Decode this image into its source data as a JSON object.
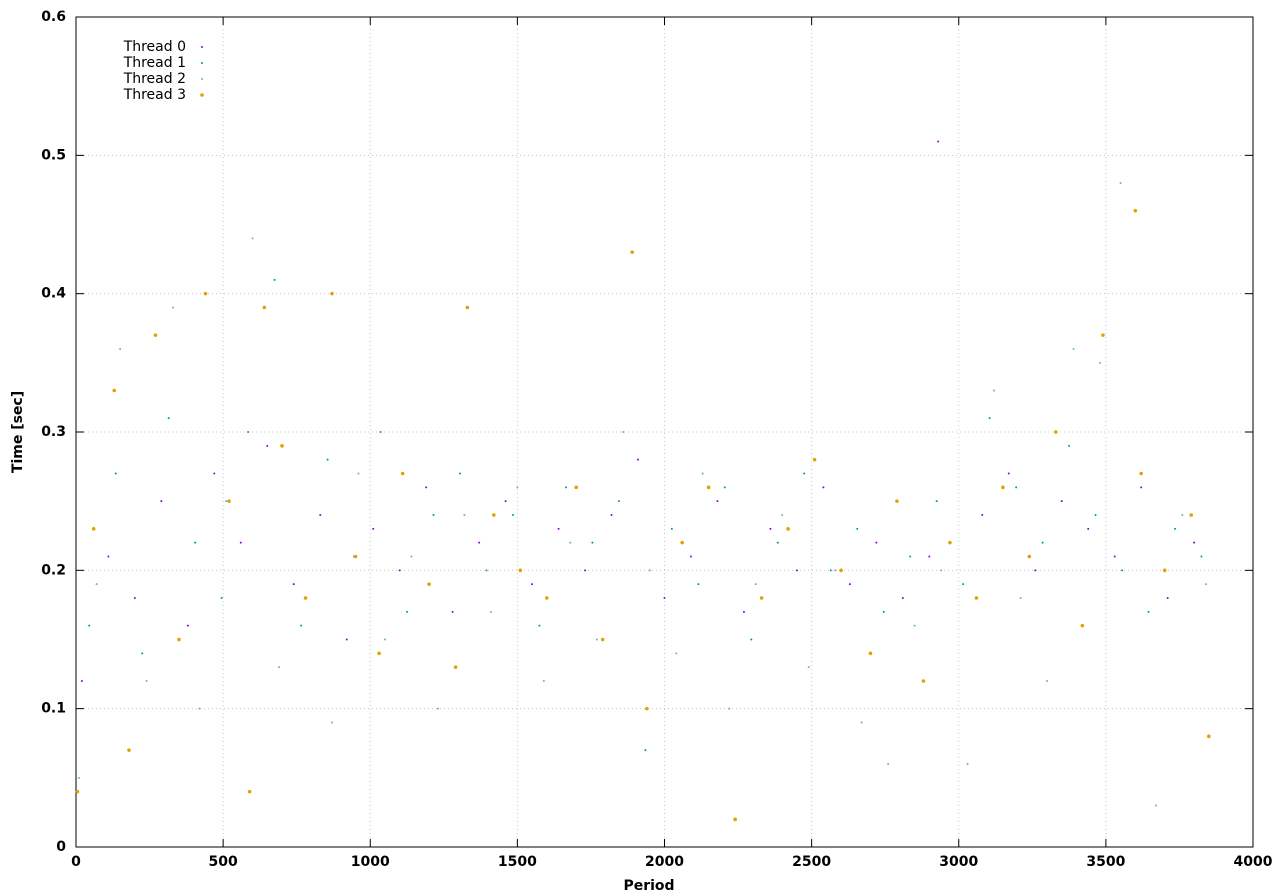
{
  "chart_data": {
    "type": "scatter",
    "xlabel": "Period",
    "ylabel": "Time [sec]",
    "xlim": [
      0,
      4000
    ],
    "ylim": [
      0,
      0.6
    ],
    "xticks": [
      0,
      500,
      1000,
      1500,
      2000,
      2500,
      3000,
      3500,
      4000
    ],
    "yticks": [
      0,
      0.1,
      0.2,
      0.3,
      0.4,
      0.5,
      0.6
    ],
    "grid": true,
    "legend": "upper-left",
    "series": [
      {
        "name": "Thread 0",
        "color": "#9400d3",
        "x": [
          20,
          110,
          200,
          290,
          380,
          470,
          560,
          650,
          740,
          830,
          920,
          1010,
          1100,
          1190,
          1280,
          1370,
          1460,
          1550,
          1640,
          1730,
          1820,
          1910,
          2000,
          2090,
          2180,
          2270,
          2360,
          2450,
          2540,
          2630,
          2720,
          2810,
          2900,
          2930,
          3080,
          3170,
          3260,
          3350,
          3440,
          3530,
          3620,
          3710,
          3800
        ],
        "values": [
          0.12,
          0.21,
          0.18,
          0.25,
          0.16,
          0.27,
          0.22,
          0.29,
          0.19,
          0.24,
          0.15,
          0.23,
          0.2,
          0.26,
          0.17,
          0.22,
          0.25,
          0.19,
          0.23,
          0.2,
          0.24,
          0.28,
          0.18,
          0.21,
          0.25,
          0.17,
          0.23,
          0.2,
          0.26,
          0.19,
          0.22,
          0.18,
          0.21,
          0.51,
          0.24,
          0.27,
          0.2,
          0.25,
          0.23,
          0.21,
          0.26,
          0.18,
          0.22
        ]
      },
      {
        "name": "Thread 1",
        "color": "#009e73",
        "x": [
          45,
          135,
          225,
          315,
          405,
          495,
          585,
          675,
          765,
          855,
          945,
          1035,
          1125,
          1215,
          1305,
          1395,
          1485,
          1575,
          1665,
          1755,
          1845,
          1935,
          2025,
          2115,
          2205,
          2295,
          2385,
          2475,
          2565,
          2655,
          2745,
          2835,
          2925,
          3015,
          3105,
          3195,
          3285,
          3375,
          3465,
          3555,
          3645,
          3735,
          3825
        ],
        "values": [
          0.16,
          0.27,
          0.14,
          0.31,
          0.22,
          0.18,
          0.3,
          0.41,
          0.16,
          0.28,
          0.21,
          0.3,
          0.17,
          0.24,
          0.27,
          0.2,
          0.24,
          0.16,
          0.26,
          0.22,
          0.25,
          0.07,
          0.23,
          0.19,
          0.26,
          0.15,
          0.22,
          0.27,
          0.2,
          0.23,
          0.17,
          0.21,
          0.25,
          0.19,
          0.31,
          0.26,
          0.22,
          0.29,
          0.24,
          0.2,
          0.17,
          0.23,
          0.21
        ]
      },
      {
        "name": "Thread 2",
        "color": "#56b4e9",
        "x": [
          10,
          70,
          150,
          240,
          330,
          420,
          510,
          600,
          690,
          780,
          870,
          960,
          1050,
          1140,
          1230,
          1320,
          1410,
          1500,
          1590,
          1680,
          1770,
          1860,
          1950,
          2040,
          2130,
          2220,
          2310,
          2400,
          2490,
          2580,
          2670,
          2760,
          2850,
          2940,
          3030,
          3120,
          3210,
          3300,
          3390,
          3480,
          3550,
          3670,
          3760,
          3840
        ],
        "values": [
          0.05,
          0.19,
          0.36,
          0.12,
          0.39,
          0.1,
          0.25,
          0.44,
          0.13,
          0.18,
          0.09,
          0.27,
          0.15,
          0.21,
          0.1,
          0.24,
          0.17,
          0.26,
          0.12,
          0.22,
          0.15,
          0.3,
          0.2,
          0.14,
          0.27,
          0.1,
          0.19,
          0.24,
          0.13,
          0.2,
          0.09,
          0.06,
          0.16,
          0.2,
          0.06,
          0.33,
          0.18,
          0.12,
          0.36,
          0.35,
          0.48,
          0.03,
          0.24,
          0.19
        ]
      },
      {
        "name": "Thread 3",
        "color": "#e69f00",
        "x": [
          5,
          60,
          130,
          180,
          270,
          350,
          440,
          520,
          590,
          640,
          700,
          780,
          870,
          950,
          1030,
          1110,
          1200,
          1290,
          1330,
          1420,
          1510,
          1600,
          1700,
          1790,
          1890,
          1940,
          2060,
          2150,
          2240,
          2330,
          2420,
          2510,
          2600,
          2700,
          2790,
          2880,
          2970,
          3060,
          3150,
          3240,
          3330,
          3420,
          3490,
          3600,
          3620,
          3700,
          3790,
          3850
        ],
        "values": [
          0.04,
          0.23,
          0.33,
          0.07,
          0.37,
          0.15,
          0.4,
          0.25,
          0.04,
          0.39,
          0.29,
          0.18,
          0.4,
          0.21,
          0.14,
          0.27,
          0.19,
          0.13,
          0.39,
          0.24,
          0.2,
          0.18,
          0.26,
          0.15,
          0.43,
          0.1,
          0.22,
          0.26,
          0.02,
          0.18,
          0.23,
          0.28,
          0.2,
          0.14,
          0.25,
          0.12,
          0.22,
          0.18,
          0.26,
          0.21,
          0.3,
          0.16,
          0.37,
          0.46,
          0.27,
          0.2,
          0.24,
          0.08
        ]
      }
    ]
  }
}
